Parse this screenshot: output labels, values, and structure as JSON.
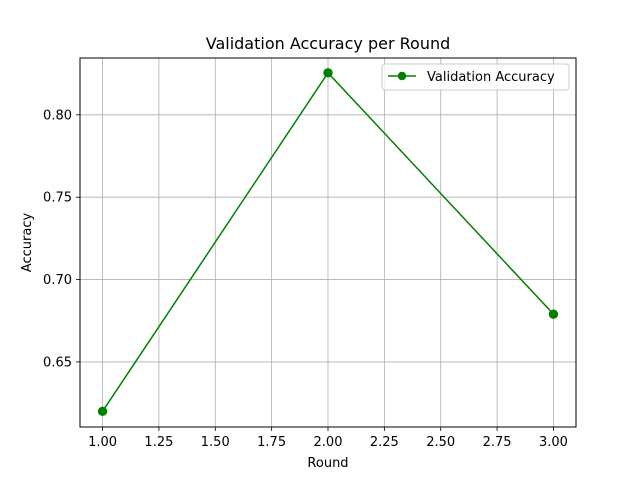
{
  "chart_data": {
    "type": "line",
    "title": "Validation Accuracy per Round",
    "xlabel": "Round",
    "ylabel": "Accuracy",
    "xlim": [
      0.9,
      3.1
    ],
    "ylim": [
      0.6105,
      0.8345
    ],
    "xticks": [
      1.0,
      1.25,
      1.5,
      1.75,
      2.0,
      2.25,
      2.5,
      2.75,
      3.0
    ],
    "xtick_labels": [
      "1.00",
      "1.25",
      "1.50",
      "1.75",
      "2.00",
      "2.25",
      "2.50",
      "2.75",
      "3.00"
    ],
    "yticks": [
      0.65,
      0.7,
      0.75,
      0.8
    ],
    "ytick_labels": [
      "0.65",
      "0.70",
      "0.75",
      "0.80"
    ],
    "grid": true,
    "legend_position": "upper right",
    "series": [
      {
        "name": "Validation Accuracy",
        "color": "#008000",
        "marker": "circle",
        "x": [
          1,
          2,
          3
        ],
        "y": [
          0.62,
          0.8255,
          0.679
        ]
      }
    ]
  }
}
